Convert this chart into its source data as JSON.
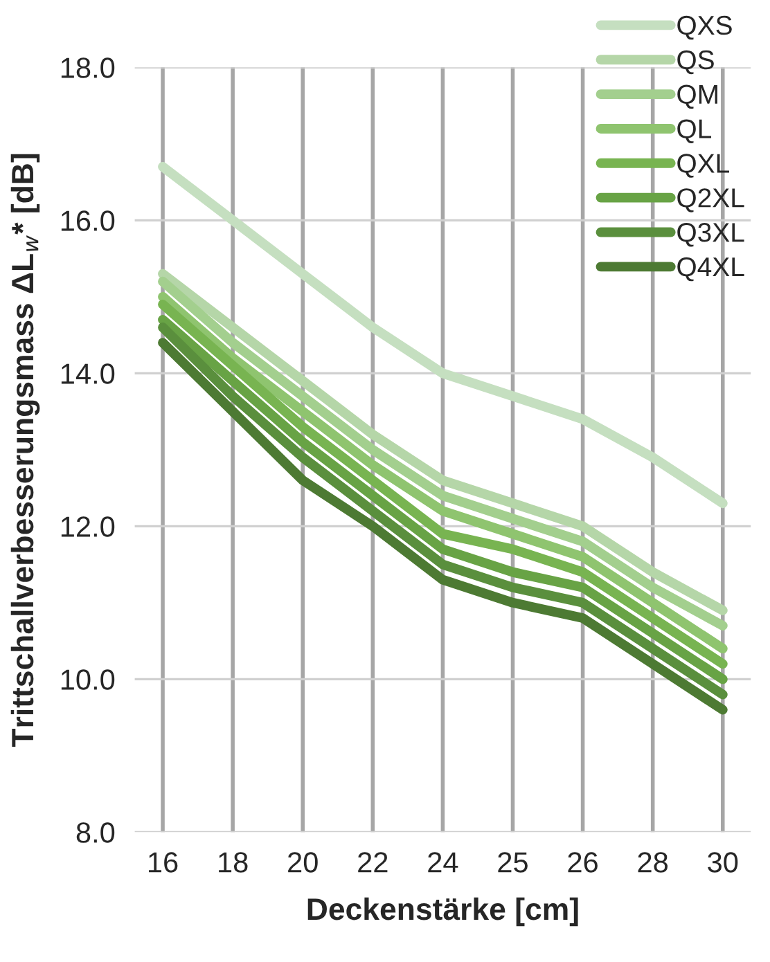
{
  "chart_data": {
    "type": "line",
    "xlabel": "Deckenstärke [cm]",
    "ylabel": "Trittschallverbesserungsmass ΔL$_{w}$* [dB]",
    "categories": [
      "16",
      "18",
      "20",
      "22",
      "24",
      "25",
      "26",
      "28",
      "30"
    ],
    "series": [
      {
        "name": "QXS",
        "color": "#c5dfc0",
        "values": [
          16.7,
          16.0,
          15.3,
          14.6,
          14.0,
          13.7,
          13.4,
          12.9,
          12.3
        ]
      },
      {
        "name": "QS",
        "color": "#b5d6a8",
        "values": [
          15.3,
          14.6,
          13.9,
          13.2,
          12.6,
          12.3,
          12.0,
          11.4,
          10.9
        ]
      },
      {
        "name": "QM",
        "color": "#a3cf8e",
        "values": [
          15.2,
          14.4,
          13.7,
          13.0,
          12.4,
          12.1,
          11.8,
          11.2,
          10.7
        ]
      },
      {
        "name": "QL",
        "color": "#8fc46f",
        "values": [
          15.0,
          14.2,
          13.5,
          12.8,
          12.2,
          11.9,
          11.6,
          11.0,
          10.4
        ]
      },
      {
        "name": "QXL",
        "color": "#78b451",
        "values": [
          14.9,
          14.1,
          13.3,
          12.6,
          11.9,
          11.7,
          11.4,
          10.8,
          10.2
        ]
      },
      {
        "name": "Q2XL",
        "color": "#68a345",
        "values": [
          14.7,
          13.9,
          13.1,
          12.4,
          11.7,
          11.4,
          11.2,
          10.6,
          10.0
        ]
      },
      {
        "name": "Q3XL",
        "color": "#5a8f3d",
        "values": [
          14.6,
          13.7,
          12.9,
          12.2,
          11.5,
          11.2,
          11.0,
          10.4,
          9.8
        ]
      },
      {
        "name": "Q4XL",
        "color": "#4d7a33",
        "values": [
          14.4,
          13.5,
          12.6,
          12.0,
          11.3,
          11.0,
          10.8,
          10.2,
          9.6
        ]
      }
    ],
    "ylim": [
      8,
      18
    ],
    "yticks": [
      {
        "value": 8,
        "label": "8.0"
      },
      {
        "value": 10,
        "label": "10.0"
      },
      {
        "value": 12,
        "label": "12.0"
      },
      {
        "value": 14,
        "label": "14.0"
      },
      {
        "value": 16,
        "label": "16.0"
      },
      {
        "value": 18,
        "label": "18.0"
      }
    ],
    "grid": true,
    "legend": "top right",
    "marker": "none",
    "line_style": "solid"
  }
}
